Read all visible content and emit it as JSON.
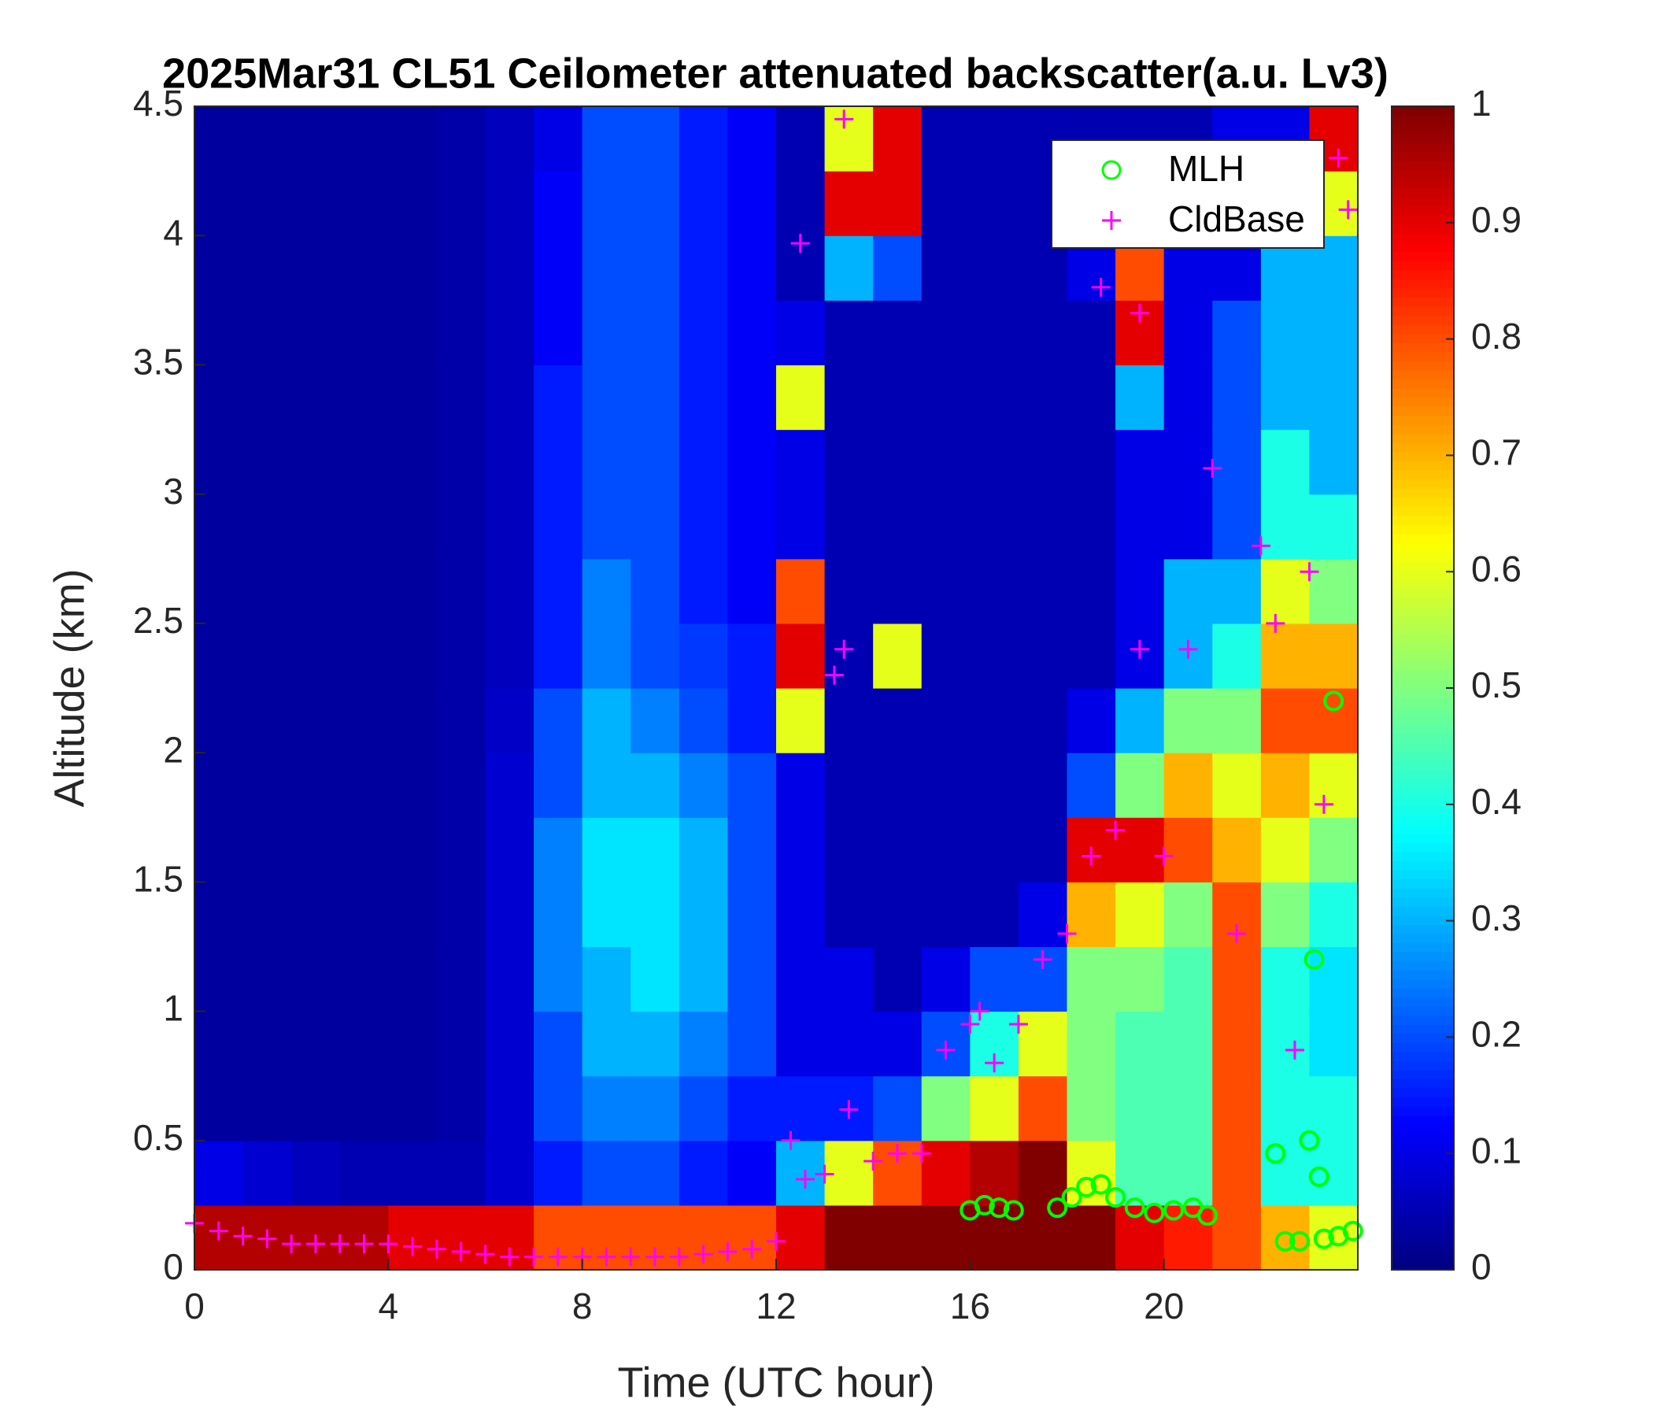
{
  "chart_data": {
    "type": "heatmap",
    "title": "2025Mar31 CL51 Ceilometer attenuated backscatter(a.u. Lv3)",
    "xlabel": "Time (UTC hour)",
    "ylabel": "Altitude (km)",
    "xlim": [
      0,
      24
    ],
    "ylim": [
      0,
      4.5
    ],
    "xticks": [
      0,
      4,
      8,
      12,
      16,
      20
    ],
    "yticks": [
      0,
      0.5,
      1,
      1.5,
      2,
      2.5,
      3,
      3.5,
      4,
      4.5
    ],
    "clim": [
      0,
      1
    ],
    "cticks": [
      0,
      0.1,
      0.2,
      0.3,
      0.4,
      0.5,
      0.6,
      0.7,
      0.8,
      0.9,
      1
    ],
    "colormap": "jet",
    "x_bins": [
      0,
      1,
      2,
      3,
      4,
      5,
      6,
      7,
      8,
      9,
      10,
      11,
      12,
      13,
      14,
      15,
      16,
      17,
      18,
      19,
      20,
      21,
      22,
      23,
      24
    ],
    "y_bins": [
      0,
      0.25,
      0.5,
      0.75,
      1,
      1.25,
      1.5,
      1.75,
      2,
      2.25,
      2.5,
      2.75,
      3,
      3.25,
      3.5,
      3.75,
      4,
      4.25,
      4.5
    ],
    "z": [
      [
        0.95,
        0.1,
        0.03,
        0.03,
        0.03,
        0.03,
        0.03,
        0.03,
        0.03,
        0.03,
        0.03,
        0.03,
        0.03,
        0.03,
        0.03,
        0.03,
        0.03,
        0.03
      ],
      [
        0.95,
        0.08,
        0.03,
        0.03,
        0.03,
        0.03,
        0.03,
        0.03,
        0.03,
        0.03,
        0.03,
        0.03,
        0.03,
        0.03,
        0.03,
        0.03,
        0.03,
        0.03
      ],
      [
        0.95,
        0.06,
        0.03,
        0.03,
        0.03,
        0.03,
        0.03,
        0.03,
        0.03,
        0.03,
        0.03,
        0.03,
        0.03,
        0.03,
        0.03,
        0.03,
        0.03,
        0.03
      ],
      [
        0.95,
        0.05,
        0.03,
        0.03,
        0.03,
        0.03,
        0.03,
        0.03,
        0.03,
        0.03,
        0.03,
        0.03,
        0.03,
        0.03,
        0.03,
        0.03,
        0.03,
        0.03
      ],
      [
        0.9,
        0.05,
        0.03,
        0.03,
        0.03,
        0.03,
        0.03,
        0.03,
        0.03,
        0.03,
        0.03,
        0.03,
        0.03,
        0.03,
        0.03,
        0.03,
        0.03,
        0.03
      ],
      [
        0.9,
        0.05,
        0.04,
        0.04,
        0.04,
        0.04,
        0.04,
        0.04,
        0.04,
        0.04,
        0.04,
        0.04,
        0.04,
        0.04,
        0.04,
        0.04,
        0.04,
        0.04
      ],
      [
        0.9,
        0.08,
        0.08,
        0.08,
        0.08,
        0.08,
        0.08,
        0.08,
        0.07,
        0.06,
        0.06,
        0.06,
        0.06,
        0.06,
        0.06,
        0.06,
        0.06,
        0.06
      ],
      [
        0.8,
        0.15,
        0.2,
        0.2,
        0.25,
        0.25,
        0.25,
        0.2,
        0.2,
        0.15,
        0.15,
        0.15,
        0.15,
        0.15,
        0.12,
        0.12,
        0.12,
        0.1
      ],
      [
        0.8,
        0.2,
        0.25,
        0.3,
        0.3,
        0.35,
        0.35,
        0.3,
        0.3,
        0.25,
        0.25,
        0.2,
        0.2,
        0.2,
        0.2,
        0.2,
        0.2,
        0.2
      ],
      [
        0.8,
        0.2,
        0.25,
        0.3,
        0.35,
        0.35,
        0.35,
        0.3,
        0.25,
        0.2,
        0.2,
        0.2,
        0.2,
        0.2,
        0.2,
        0.2,
        0.2,
        0.2
      ],
      [
        0.8,
        0.15,
        0.2,
        0.25,
        0.3,
        0.3,
        0.3,
        0.25,
        0.2,
        0.18,
        0.15,
        0.15,
        0.15,
        0.15,
        0.15,
        0.15,
        0.15,
        0.15
      ],
      [
        0.8,
        0.12,
        0.15,
        0.2,
        0.2,
        0.2,
        0.2,
        0.2,
        0.15,
        0.15,
        0.12,
        0.12,
        0.12,
        0.12,
        0.12,
        0.12,
        0.12,
        0.12
      ],
      [
        0.9,
        0.3,
        0.15,
        0.1,
        0.1,
        0.1,
        0.1,
        0.1,
        0.6,
        0.9,
        0.8,
        0.1,
        0.1,
        0.6,
        0.1,
        0.05,
        0.05,
        0.05
      ],
      [
        1,
        0.6,
        0.15,
        0.1,
        0.1,
        0.05,
        0.05,
        0.05,
        0.05,
        0.05,
        0.05,
        0.05,
        0.05,
        0.05,
        0.05,
        0.3,
        0.9,
        0.6
      ],
      [
        1,
        0.8,
        0.2,
        0.1,
        0.05,
        0.05,
        0.05,
        0.05,
        0.05,
        0.6,
        0.05,
        0.05,
        0.05,
        0.05,
        0.05,
        0.2,
        0.9,
        0.9
      ],
      [
        1,
        0.9,
        0.5,
        0.2,
        0.1,
        0.05,
        0.05,
        0.05,
        0.05,
        0.05,
        0.05,
        0.05,
        0.05,
        0.05,
        0.05,
        0.05,
        0.05,
        0.05
      ],
      [
        1,
        0.95,
        0.6,
        0.4,
        0.2,
        0.05,
        0.05,
        0.05,
        0.05,
        0.05,
        0.05,
        0.05,
        0.05,
        0.05,
        0.05,
        0.05,
        0.05,
        0.05
      ],
      [
        1,
        1,
        0.8,
        0.6,
        0.2,
        0.1,
        0.05,
        0.05,
        0.05,
        0.05,
        0.05,
        0.05,
        0.05,
        0.05,
        0.05,
        0.05,
        0.05,
        0.05
      ],
      [
        1,
        0.6,
        0.5,
        0.5,
        0.5,
        0.7,
        0.9,
        0.2,
        0.1,
        0.05,
        0.05,
        0.05,
        0.05,
        0.05,
        0.05,
        0.1,
        0.05,
        0.05
      ],
      [
        0.9,
        0.45,
        0.45,
        0.45,
        0.5,
        0.6,
        0.9,
        0.5,
        0.3,
        0.1,
        0.1,
        0.1,
        0.1,
        0.3,
        0.9,
        0.8,
        0.1,
        0.05
      ],
      [
        0.85,
        0.45,
        0.45,
        0.45,
        0.45,
        0.5,
        0.8,
        0.7,
        0.5,
        0.3,
        0.3,
        0.1,
        0.1,
        0.1,
        0.1,
        0.1,
        0.1,
        0.05
      ],
      [
        0.8,
        0.8,
        0.8,
        0.8,
        0.8,
        0.8,
        0.7,
        0.6,
        0.5,
        0.4,
        0.3,
        0.2,
        0.2,
        0.2,
        0.2,
        0.1,
        0.1,
        0.1
      ],
      [
        0.7,
        0.4,
        0.4,
        0.4,
        0.4,
        0.5,
        0.6,
        0.7,
        0.8,
        0.7,
        0.6,
        0.4,
        0.4,
        0.3,
        0.3,
        0.3,
        0.2,
        0.1
      ],
      [
        0.6,
        0.4,
        0.4,
        0.35,
        0.35,
        0.4,
        0.5,
        0.6,
        0.8,
        0.7,
        0.5,
        0.4,
        0.3,
        0.3,
        0.3,
        0.3,
        0.6,
        0.9
      ]
    ],
    "legend": "upper right",
    "series": [
      {
        "name": "MLH",
        "color": "#00ff00",
        "marker": "circle",
        "x": [
          16.0,
          16.3,
          16.6,
          16.9,
          17.8,
          18.1,
          18.4,
          18.7,
          19.0,
          19.4,
          19.8,
          20.2,
          20.6,
          20.9,
          22.3,
          22.5,
          22.8,
          23.0,
          23.2,
          23.3,
          23.6,
          23.9,
          23.1,
          23.5
        ],
        "values": [
          0.23,
          0.25,
          0.24,
          0.23,
          0.24,
          0.28,
          0.32,
          0.33,
          0.28,
          0.24,
          0.22,
          0.23,
          0.24,
          0.21,
          0.45,
          0.11,
          0.11,
          0.5,
          0.36,
          0.12,
          0.13,
          0.15,
          1.2,
          2.2
        ]
      },
      {
        "name": "CldBase",
        "color": "#ff00ff",
        "marker": "plus",
        "x": [
          0,
          0.5,
          1,
          1.5,
          2,
          2.5,
          3,
          3.5,
          4,
          4.5,
          5,
          5.5,
          6,
          6.5,
          7,
          7.5,
          8,
          8.5,
          9,
          9.5,
          10,
          10.5,
          11,
          11.5,
          12,
          12.3,
          12.6,
          13,
          13.2,
          13.4,
          13.4,
          12.5,
          13.5,
          14,
          14.5,
          15,
          15.5,
          16,
          16.2,
          16.5,
          17,
          17.5,
          18,
          18.5,
          19,
          19.5,
          20,
          20.5,
          21,
          21.5,
          22,
          22.3,
          22.7,
          23,
          23.3,
          23.6,
          23.8,
          18.7,
          19.5
        ],
        "values": [
          0.18,
          0.15,
          0.13,
          0.12,
          0.1,
          0.1,
          0.1,
          0.1,
          0.1,
          0.09,
          0.08,
          0.07,
          0.06,
          0.05,
          0.05,
          0.05,
          0.05,
          0.05,
          0.05,
          0.05,
          0.05,
          0.06,
          0.07,
          0.08,
          0.11,
          0.5,
          0.35,
          0.37,
          2.3,
          2.4,
          4.45,
          3.97,
          0.62,
          0.42,
          0.45,
          0.45,
          0.85,
          0.95,
          1.0,
          0.8,
          0.95,
          1.2,
          1.3,
          1.6,
          1.7,
          2.4,
          1.6,
          2.4,
          3.1,
          1.3,
          2.8,
          2.5,
          0.85,
          2.7,
          1.8,
          4.3,
          4.1,
          3.8,
          3.7
        ]
      }
    ]
  }
}
